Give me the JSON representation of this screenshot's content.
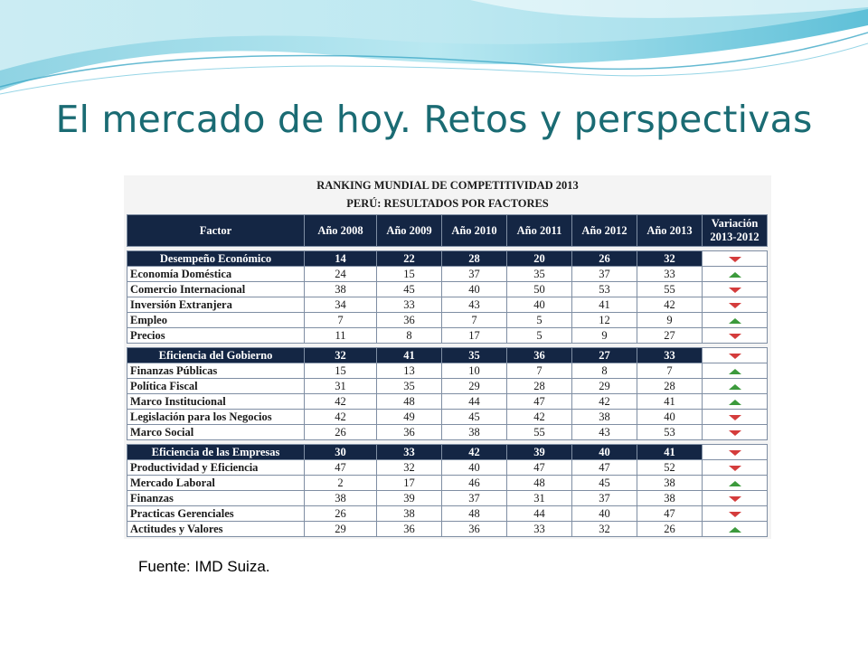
{
  "slide": {
    "title": "El mercado de hoy. Retos y perspectivas",
    "source": "Fuente: IMD Suiza."
  },
  "table": {
    "title": "RANKING MUNDIAL DE COMPETITIVIDAD 2013",
    "subtitle": "PERÚ: RESULTADOS POR FACTORES",
    "headers": [
      "Factor",
      "Año 2008",
      "Año 2009",
      "Año 2010",
      "Año 2011",
      "Año 2012",
      "Año 2013",
      "Variación 2013-2012"
    ],
    "groups": [
      {
        "name": "Desempeño Económico",
        "values": [
          "14",
          "22",
          "28",
          "20",
          "26",
          "32"
        ],
        "variation": "down",
        "rows": [
          {
            "name": "Economía Doméstica",
            "values": [
              "24",
              "15",
              "37",
              "35",
              "37",
              "33"
            ],
            "variation": "up"
          },
          {
            "name": "Comercio Internacional",
            "values": [
              "38",
              "45",
              "40",
              "50",
              "53",
              "55"
            ],
            "variation": "down"
          },
          {
            "name": "Inversión Extranjera",
            "values": [
              "34",
              "33",
              "43",
              "40",
              "41",
              "42"
            ],
            "variation": "down"
          },
          {
            "name": "Empleo",
            "values": [
              "7",
              "36",
              "7",
              "5",
              "12",
              "9"
            ],
            "variation": "up"
          },
          {
            "name": "Precios",
            "values": [
              "11",
              "8",
              "17",
              "5",
              "9",
              "27"
            ],
            "variation": "down"
          }
        ]
      },
      {
        "name": "Eficiencia del Gobierno",
        "values": [
          "32",
          "41",
          "35",
          "36",
          "27",
          "33"
        ],
        "variation": "down",
        "rows": [
          {
            "name": "Finanzas Públicas",
            "values": [
              "15",
              "13",
              "10",
              "7",
              "8",
              "7"
            ],
            "variation": "up"
          },
          {
            "name": "Política Fiscal",
            "values": [
              "31",
              "35",
              "29",
              "28",
              "29",
              "28"
            ],
            "variation": "up"
          },
          {
            "name": "Marco Institucional",
            "values": [
              "42",
              "48",
              "44",
              "47",
              "42",
              "41"
            ],
            "variation": "up"
          },
          {
            "name": "Legislación para los Negocios",
            "values": [
              "42",
              "49",
              "45",
              "42",
              "38",
              "40"
            ],
            "variation": "down"
          },
          {
            "name": "Marco Social",
            "values": [
              "26",
              "36",
              "38",
              "55",
              "43",
              "53"
            ],
            "variation": "down"
          }
        ]
      },
      {
        "name": "Eficiencia de las Empresas",
        "values": [
          "30",
          "33",
          "42",
          "39",
          "40",
          "41"
        ],
        "variation": "down",
        "rows": [
          {
            "name": "Productividad y Eficiencia",
            "values": [
              "47",
              "32",
              "40",
              "47",
              "47",
              "52"
            ],
            "variation": "down"
          },
          {
            "name": "Mercado Laboral",
            "values": [
              "2",
              "17",
              "46",
              "48",
              "45",
              "38"
            ],
            "variation": "up"
          },
          {
            "name": "Finanzas",
            "values": [
              "38",
              "39",
              "37",
              "31",
              "37",
              "38"
            ],
            "variation": "down"
          },
          {
            "name": "Practicas Gerenciales",
            "values": [
              "26",
              "38",
              "48",
              "44",
              "40",
              "47"
            ],
            "variation": "down"
          },
          {
            "name": "Actitudes y Valores",
            "values": [
              "29",
              "36",
              "36",
              "33",
              "32",
              "26"
            ],
            "variation": "up"
          }
        ]
      }
    ]
  },
  "icons": {
    "down": "triangle-down-icon",
    "up": "triangle-up-icon"
  },
  "colors": {
    "title": "#1a6b73",
    "header_bg": "#142644",
    "arrow_down": "#d43c3c",
    "arrow_up": "#3c9a3c"
  }
}
